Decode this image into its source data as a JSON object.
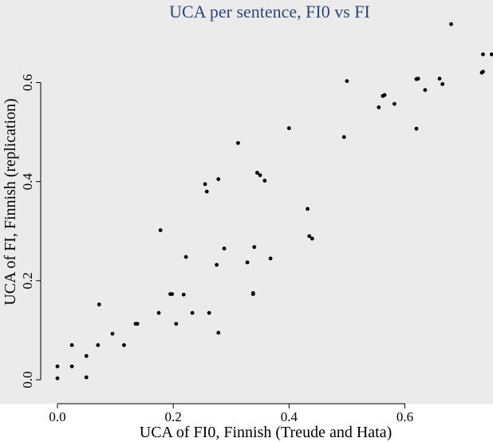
{
  "chart_data": {
    "type": "scatter",
    "title": "UCA per sentence, FI0 vs FI",
    "xlabel": "UCA of FI0, Finnish (Treude and Hata)",
    "ylabel": "UCA of FI, Finnish (replication)",
    "xlim": [
      -0.03,
      0.75
    ],
    "ylim": [
      -0.04,
      0.77
    ],
    "x_ticks": [
      0.0,
      0.2,
      0.4,
      0.6
    ],
    "x_tick_labels": [
      "0.0",
      "0.2",
      "0.4",
      "0.6"
    ],
    "y_ticks": [
      0.0,
      0.2,
      0.4,
      0.6
    ],
    "y_tick_labels": [
      "0.0",
      "0.2",
      "0.4",
      "0.6"
    ],
    "grid": false,
    "legend": "none",
    "colors": {
      "background": "#ebebeb",
      "points": "#000000",
      "title": "#2f4477"
    },
    "points": [
      [
        0.0,
        0.027
      ],
      [
        0.0,
        0.003
      ],
      [
        0.025,
        0.07
      ],
      [
        0.025,
        0.027
      ],
      [
        0.05,
        0.048
      ],
      [
        0.05,
        0.005
      ],
      [
        0.07,
        0.07
      ],
      [
        0.072,
        0.152
      ],
      [
        0.095,
        0.093
      ],
      [
        0.115,
        0.07
      ],
      [
        0.135,
        0.113
      ],
      [
        0.138,
        0.113
      ],
      [
        0.175,
        0.135
      ],
      [
        0.178,
        0.302
      ],
      [
        0.195,
        0.173
      ],
      [
        0.198,
        0.173
      ],
      [
        0.205,
        0.113
      ],
      [
        0.218,
        0.172
      ],
      [
        0.222,
        0.248
      ],
      [
        0.233,
        0.135
      ],
      [
        0.255,
        0.395
      ],
      [
        0.258,
        0.38
      ],
      [
        0.262,
        0.135
      ],
      [
        0.275,
        0.232
      ],
      [
        0.278,
        0.095
      ],
      [
        0.278,
        0.405
      ],
      [
        0.288,
        0.265
      ],
      [
        0.312,
        0.478
      ],
      [
        0.328,
        0.237
      ],
      [
        0.338,
        0.173
      ],
      [
        0.338,
        0.175
      ],
      [
        0.34,
        0.268
      ],
      [
        0.345,
        0.418
      ],
      [
        0.35,
        0.413
      ],
      [
        0.358,
        0.402
      ],
      [
        0.368,
        0.245
      ],
      [
        0.4,
        0.508
      ],
      [
        0.432,
        0.345
      ],
      [
        0.435,
        0.29
      ],
      [
        0.44,
        0.285
      ],
      [
        0.495,
        0.49
      ],
      [
        0.5,
        0.603
      ],
      [
        0.555,
        0.55
      ],
      [
        0.562,
        0.573
      ],
      [
        0.565,
        0.575
      ],
      [
        0.582,
        0.557
      ],
      [
        0.62,
        0.607
      ],
      [
        0.623,
        0.608
      ],
      [
        0.62,
        0.507
      ],
      [
        0.635,
        0.585
      ],
      [
        0.66,
        0.608
      ],
      [
        0.665,
        0.597
      ],
      [
        0.68,
        0.718
      ],
      [
        0.733,
        0.62
      ],
      [
        0.735,
        0.657
      ],
      [
        0.735,
        0.622
      ],
      [
        0.75,
        0.657
      ]
    ]
  }
}
